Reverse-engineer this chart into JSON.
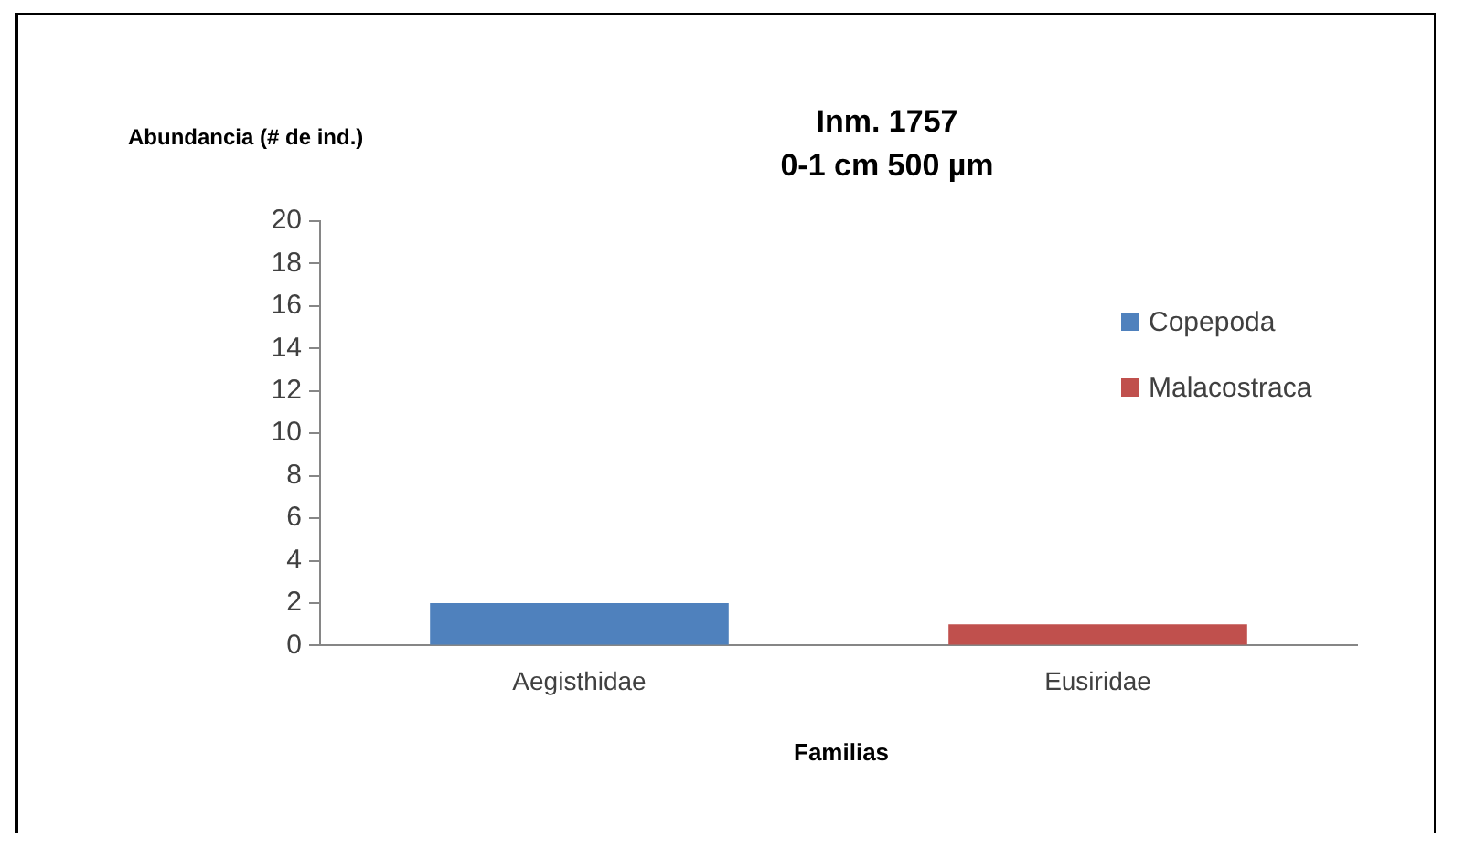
{
  "chart_data": {
    "type": "bar",
    "title": "Inm. 1757",
    "subtitle": "0-1 cm 500 µm",
    "xlabel": "Familias",
    "ylabel": "Abundancia (# de ind.)",
    "categories": [
      "Aegisthidae",
      "Eusiridae"
    ],
    "series": [
      {
        "name": "Copepoda",
        "color": "#4f81bd",
        "values": [
          2,
          null
        ]
      },
      {
        "name": "Malacostraca",
        "color": "#c0504d",
        "values": [
          null,
          1
        ]
      }
    ],
    "ylim": [
      0,
      20
    ],
    "yticks": [
      0,
      2,
      4,
      6,
      8,
      10,
      12,
      14,
      16,
      18,
      20
    ],
    "grid": false,
    "legend": "top right"
  }
}
